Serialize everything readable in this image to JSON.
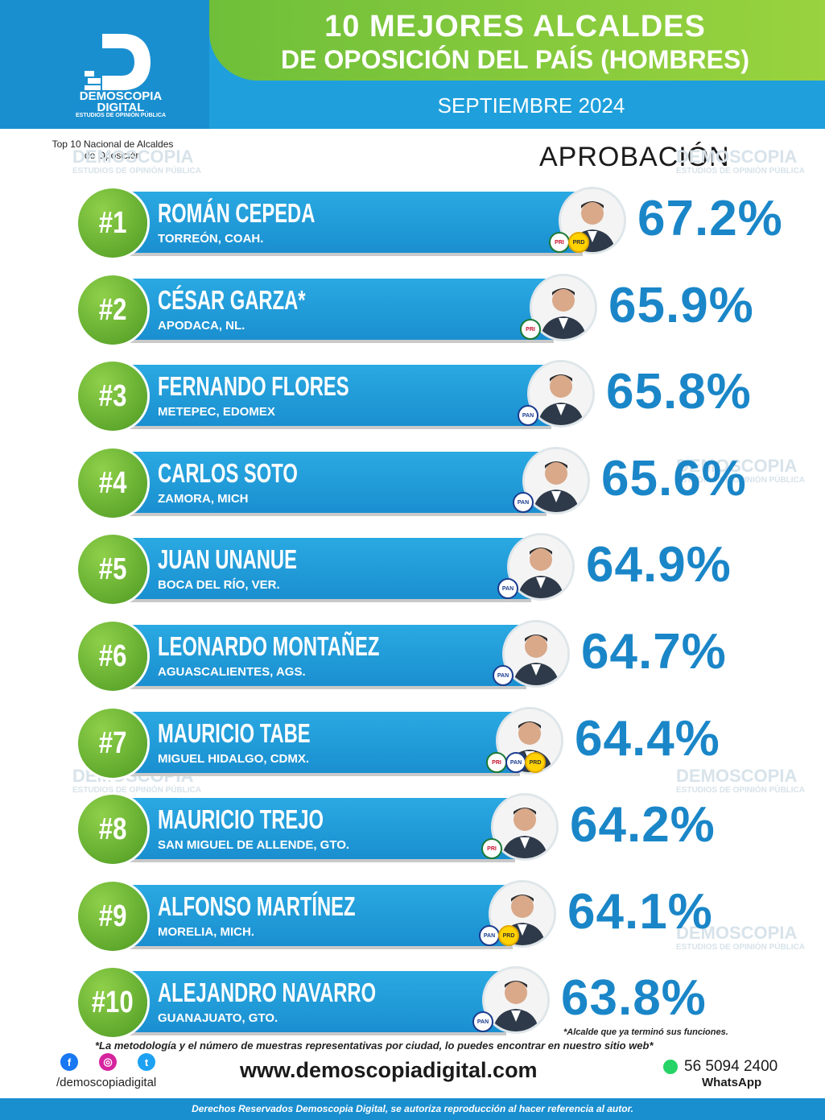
{
  "header": {
    "title_line1": "10 MEJORES ALCALDES",
    "title_line2": "DE OPOSICIÓN DEL PAÍS (HOMBRES)",
    "date": "SEPTIEMBRE 2024",
    "logo_name_line1": "DEMOSCOPIA",
    "logo_name_line2": "DIGITAL",
    "logo_tagline": "ESTUDIOS DE OPINIÓN PÚBLICA"
  },
  "subnote": "Top 10 Nacional de Alcaldes de Oposición",
  "column_label": "APROBACIÓN",
  "colors": {
    "header_blue": "#1fa0dc",
    "accent_green": "#6fbf3a",
    "bar_blue": "#1a8fd0",
    "percent_blue": "#1a86c8"
  },
  "chart_data": {
    "type": "bar",
    "title": "10 MEJORES ALCALDES DE OPOSICIÓN DEL PAÍS (HOMBRES)",
    "ylabel": "APROBACIÓN",
    "unit": "%",
    "categories": [
      "ROMÁN CEPEDA",
      "CÉSAR GARZA*",
      "FERNANDO FLORES",
      "CARLOS SOTO",
      "JUAN UNANUE",
      "LEONARDO MONTAÑEZ",
      "MAURICIO TABE",
      "MAURICIO TREJO",
      "ALFONSO MARTÍNEZ",
      "ALEJANDRO NAVARRO"
    ],
    "values": [
      67.2,
      65.9,
      65.8,
      65.6,
      64.9,
      64.7,
      64.4,
      64.2,
      64.1,
      63.8
    ]
  },
  "rows": [
    {
      "rank": "#1",
      "name": "ROMÁN CEPEDA",
      "city": "TORREÓN, COAH.",
      "percent": "67.2%",
      "parties": [
        "PRI",
        "PRD"
      ]
    },
    {
      "rank": "#2",
      "name": "CÉSAR GARZA*",
      "city": "APODACA, NL.",
      "percent": "65.9%",
      "parties": [
        "PRI"
      ]
    },
    {
      "rank": "#3",
      "name": "FERNANDO FLORES",
      "city": "METEPEC, EDOMEX",
      "percent": "65.8%",
      "parties": [
        "PAN"
      ]
    },
    {
      "rank": "#4",
      "name": "CARLOS SOTO",
      "city": "ZAMORA, MICH",
      "percent": "65.6%",
      "parties": [
        "PAN"
      ]
    },
    {
      "rank": "#5",
      "name": "JUAN UNANUE",
      "city": "BOCA DEL RÍO, VER.",
      "percent": "64.9%",
      "parties": [
        "PAN"
      ]
    },
    {
      "rank": "#6",
      "name": "LEONARDO MONTAÑEZ",
      "city": "AGUASCALIENTES, AGS.",
      "percent": "64.7%",
      "parties": [
        "PAN"
      ]
    },
    {
      "rank": "#7",
      "name": "MAURICIO TABE",
      "city": "MIGUEL HIDALGO, CDMX.",
      "percent": "64.4%",
      "parties": [
        "PRI",
        "PAN",
        "PRD"
      ]
    },
    {
      "rank": "#8",
      "name": "MAURICIO TREJO",
      "city": "SAN MIGUEL DE ALLENDE, GTO.",
      "percent": "64.2%",
      "parties": [
        "PRI"
      ]
    },
    {
      "rank": "#9",
      "name": "ALFONSO MARTÍNEZ",
      "city": "MORELIA, MICH.",
      "percent": "64.1%",
      "parties": [
        "PAN",
        "PRD"
      ]
    },
    {
      "rank": "#10",
      "name": "ALEJANDRO NAVARRO",
      "city": "GUANAJUATO, GTO.",
      "percent": "63.8%",
      "parties": [
        "PAN"
      ]
    }
  ],
  "footer": {
    "note_asterisk": "*Alcalde que ya terminó sus funciones.",
    "note_method": "*La metodología y el número de muestras representativas por ciudad, lo puedes encontrar en nuestro sitio web*",
    "social_handle": "/demoscopiadigital",
    "website": "www.demoscopiadigital.com",
    "phone": "56 5094 2400",
    "whatsapp_label": "WhatsApp",
    "rights": "Derechos Reservados Demoscopia Digital, se autoriza reproducción al hacer referencia al autor."
  }
}
